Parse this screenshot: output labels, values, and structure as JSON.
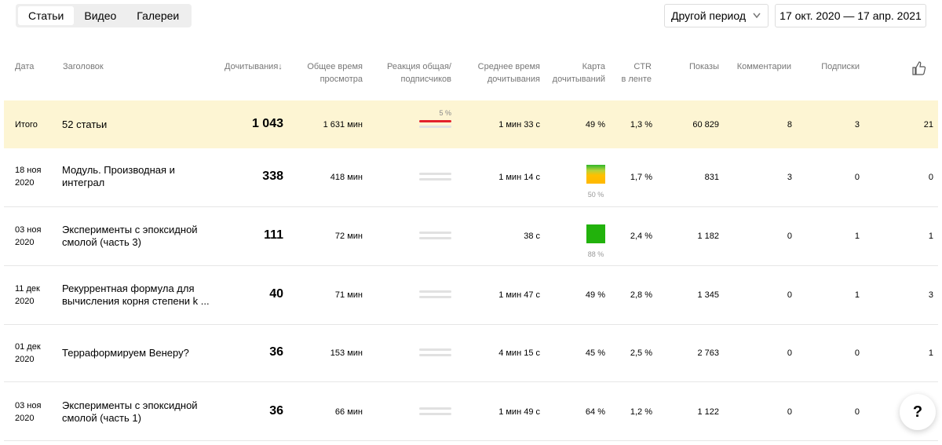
{
  "tabs": [
    "Статьи",
    "Видео",
    "Галереи"
  ],
  "period": {
    "label": "Другой период",
    "chevron_icon": "chevron-down-icon"
  },
  "date_range": "17 окт. 2020 — 17 апр. 2021",
  "headers": {
    "date": "Дата",
    "title": "Заголовок",
    "reads": "Дочитывания",
    "sort_icon": "↓",
    "total_time_1": "Общее время",
    "total_time_2": "просмотра",
    "reaction_1": "Реакция общая/",
    "reaction_2": "подписчиков",
    "avg_time_1": "Среднее время",
    "avg_time_2": "дочитывания",
    "readmap_1": "Карта",
    "readmap_2": "дочитываний",
    "ctr_1": "CTR",
    "ctr_2": "в ленте",
    "views": "Показы",
    "comments": "Комментарии",
    "subscriptions": "Подписки",
    "likes_icon": "thumbs-up-icon"
  },
  "total": {
    "label": "Итого",
    "title": "52 статьи",
    "reads": "1 043",
    "total_time": "1 631 мин",
    "reaction_pct": "5 %",
    "avg_time": "1 мин 33 с",
    "readmap": "49 %",
    "ctr": "1,3 %",
    "views": "60 829",
    "comments": "8",
    "subscriptions": "3",
    "likes": "21"
  },
  "rows": [
    {
      "date_1": "18 ноя",
      "date_2": "2020",
      "title": "Модуль. Производная и интеграл",
      "reads": "338",
      "total_time": "418 мин",
      "avg_time": "1 мин 14 с",
      "readmap": "",
      "readmap_pct": "50 %",
      "readmap_color": "gradient-green-orange",
      "ctr": "1,7 %",
      "views": "831",
      "comments": "3",
      "subscriptions": "0",
      "likes": "0"
    },
    {
      "date_1": "03 ноя",
      "date_2": "2020",
      "title": "Эксперименты с эпоксидной смолой (часть 3)",
      "reads": "111",
      "total_time": "72 мин",
      "avg_time": "38 с",
      "readmap": "",
      "readmap_pct": "88 %",
      "readmap_color": "#22b20c",
      "ctr": "2,4 %",
      "views": "1 182",
      "comments": "0",
      "subscriptions": "1",
      "likes": "1"
    },
    {
      "date_1": "11 дек",
      "date_2": "2020",
      "title": "Рекуррентная формула для вычисления корня степени k ...",
      "reads": "40",
      "total_time": "71 мин",
      "avg_time": "1 мин 47 с",
      "readmap": "49 %",
      "readmap_pct": "",
      "readmap_color": "",
      "ctr": "2,8 %",
      "views": "1 345",
      "comments": "0",
      "subscriptions": "1",
      "likes": "3"
    },
    {
      "date_1": "01 дек",
      "date_2": "2020",
      "title": "Терраформируем Венеру?",
      "reads": "36",
      "total_time": "153 мин",
      "avg_time": "4 мин 15 с",
      "readmap": "45 %",
      "readmap_pct": "",
      "readmap_color": "",
      "ctr": "2,5 %",
      "views": "2 763",
      "comments": "0",
      "subscriptions": "0",
      "likes": "1"
    },
    {
      "date_1": "03 ноя",
      "date_2": "2020",
      "title": "Эксперименты с эпоксидной смолой (часть 1)",
      "reads": "36",
      "total_time": "66 мин",
      "avg_time": "1 мин 49 с",
      "readmap": "64 %",
      "readmap_pct": "",
      "readmap_color": "",
      "ctr": "1,2 %",
      "views": "1 122",
      "comments": "0",
      "subscriptions": "0",
      "likes": ""
    }
  ],
  "help": {
    "label": "?"
  }
}
